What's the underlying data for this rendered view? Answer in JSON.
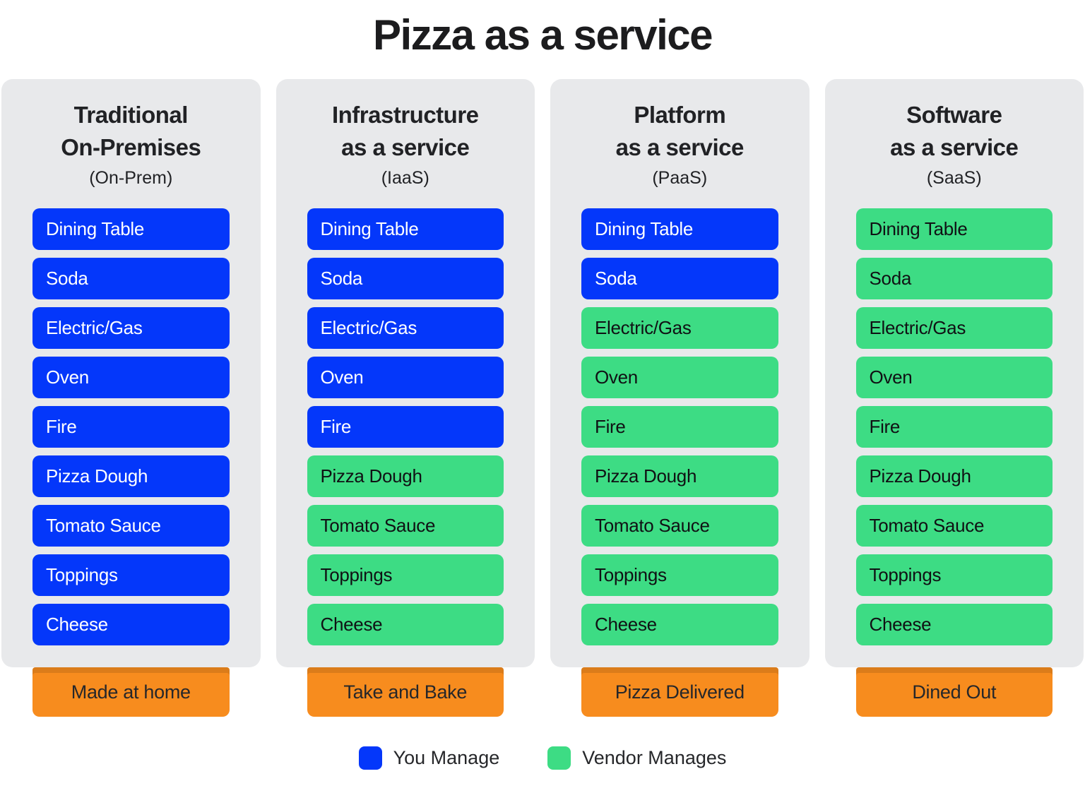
{
  "title": "Pizza as a service",
  "colors": {
    "you_manage": "#0437FA",
    "vendor_manages": "#3DDC84",
    "footer_orange": "#F78C1E",
    "panel_gray": "#E8E9EB"
  },
  "items": [
    "Dining Table",
    "Soda",
    "Electric/Gas",
    "Oven",
    "Fire",
    "Pizza Dough",
    "Tomato Sauce",
    "Toppings",
    "Cheese"
  ],
  "columns": [
    {
      "title_line1": "Traditional",
      "title_line2": "On-Premises",
      "subtitle": "(On-Prem)",
      "footer": "Made at home",
      "you_manage_count": 9
    },
    {
      "title_line1": "Infrastructure",
      "title_line2": "as a service",
      "subtitle": "(IaaS)",
      "footer": "Take and Bake",
      "you_manage_count": 5
    },
    {
      "title_line1": "Platform",
      "title_line2": "as a service",
      "subtitle": "(PaaS)",
      "footer": "Pizza Delivered",
      "you_manage_count": 2
    },
    {
      "title_line1": "Software",
      "title_line2": "as a service",
      "subtitle": "(SaaS)",
      "footer": "Dined Out",
      "you_manage_count": 0
    }
  ],
  "legend": [
    {
      "label": "You Manage",
      "color": "#0437FA"
    },
    {
      "label": "Vendor Manages",
      "color": "#3DDC84"
    }
  ]
}
